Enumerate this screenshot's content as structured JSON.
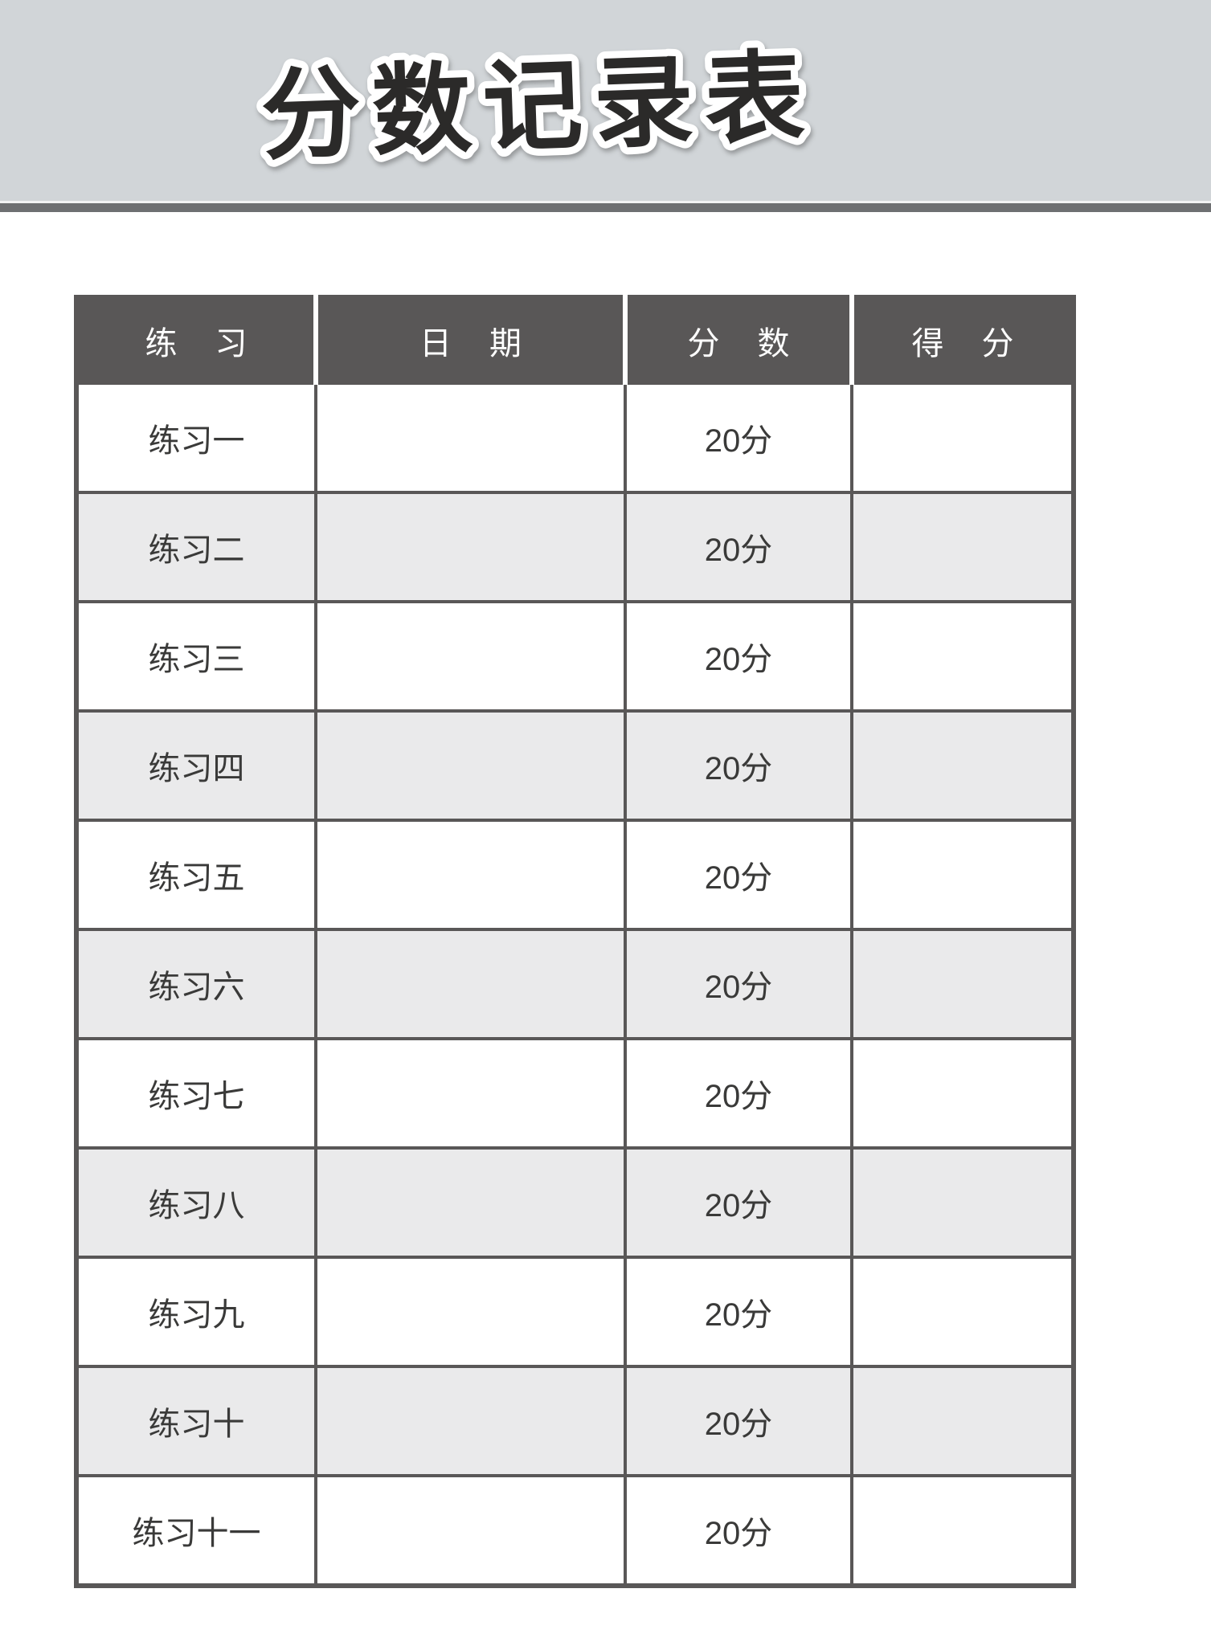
{
  "page": {
    "title": "分数记录表"
  },
  "colors": {
    "banner_bg": "#d1d5d8",
    "divider": "#6e7072",
    "header_bg": "#595757",
    "header_text": "#ffffff",
    "row_alt_bg": "#eaeaeb",
    "border": "#595757",
    "cell_text": "#3a3a39",
    "title_fill": "#2b2a29",
    "title_outline": "#ffffff",
    "page_bg": "#ffffff"
  },
  "table": {
    "headers": [
      "练 习",
      "日 期",
      "分 数",
      "得 分"
    ],
    "rows": [
      {
        "exercise": "练习一",
        "date": "",
        "score": "20分",
        "earned": ""
      },
      {
        "exercise": "练习二",
        "date": "",
        "score": "20分",
        "earned": ""
      },
      {
        "exercise": "练习三",
        "date": "",
        "score": "20分",
        "earned": ""
      },
      {
        "exercise": "练习四",
        "date": "",
        "score": "20分",
        "earned": ""
      },
      {
        "exercise": "练习五",
        "date": "",
        "score": "20分",
        "earned": ""
      },
      {
        "exercise": "练习六",
        "date": "",
        "score": "20分",
        "earned": ""
      },
      {
        "exercise": "练习七",
        "date": "",
        "score": "20分",
        "earned": ""
      },
      {
        "exercise": "练习八",
        "date": "",
        "score": "20分",
        "earned": ""
      },
      {
        "exercise": "练习九",
        "date": "",
        "score": "20分",
        "earned": ""
      },
      {
        "exercise": "练习十",
        "date": "",
        "score": "20分",
        "earned": ""
      },
      {
        "exercise": "练习十一",
        "date": "",
        "score": "20分",
        "earned": ""
      }
    ]
  }
}
